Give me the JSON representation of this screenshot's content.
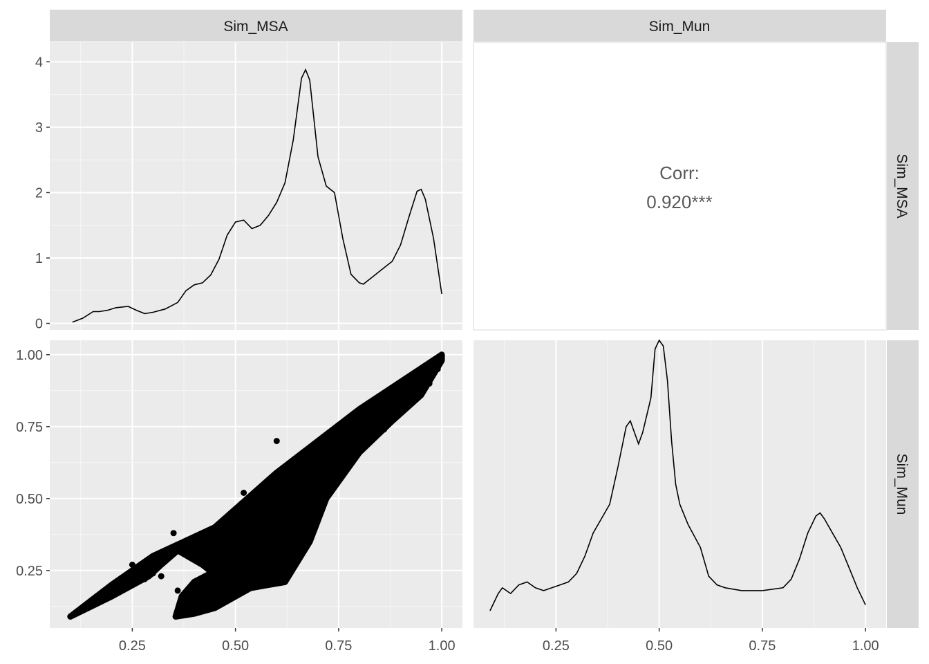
{
  "chart_data": {
    "type": "scatter-matrix",
    "variables": [
      "Sim_MSA",
      "Sim_Mun"
    ],
    "panels": [
      {
        "id": "density-sim-msa",
        "type": "line",
        "row": "Sim_MSA",
        "col": "Sim_MSA",
        "xlim": [
          0.05,
          1.05
        ],
        "ylim": [
          -0.1,
          4.3
        ],
        "x_ticks": [
          0.25,
          0.5,
          0.75,
          1.0
        ],
        "y_ticks": [
          0,
          1,
          2,
          3,
          4
        ],
        "y_tick_labels": [
          "0",
          "1",
          "2",
          "3",
          "4"
        ],
        "series": [
          {
            "x": [
              0.105,
              0.13,
              0.155,
              0.17,
              0.19,
              0.21,
              0.24,
              0.26,
              0.28,
              0.3,
              0.33,
              0.36,
              0.38,
              0.4,
              0.42,
              0.44,
              0.46,
              0.48,
              0.5,
              0.52,
              0.54,
              0.56,
              0.58,
              0.6,
              0.62,
              0.64,
              0.66,
              0.67,
              0.68,
              0.7,
              0.72,
              0.74,
              0.76,
              0.78,
              0.8,
              0.81,
              0.83,
              0.85,
              0.88,
              0.9,
              0.92,
              0.94,
              0.95,
              0.96,
              0.98,
              1.0
            ],
            "y": [
              0.02,
              0.08,
              0.18,
              0.18,
              0.2,
              0.24,
              0.26,
              0.2,
              0.15,
              0.17,
              0.22,
              0.32,
              0.5,
              0.59,
              0.62,
              0.74,
              0.98,
              1.35,
              1.55,
              1.58,
              1.45,
              1.5,
              1.65,
              1.85,
              2.15,
              2.8,
              3.75,
              3.88,
              3.72,
              2.55,
              2.1,
              2.0,
              1.3,
              0.75,
              0.62,
              0.6,
              0.7,
              0.8,
              0.95,
              1.2,
              1.62,
              2.02,
              2.05,
              1.9,
              1.3,
              0.45
            ]
          }
        ]
      },
      {
        "id": "corr-text",
        "type": "text",
        "row": "Sim_MSA",
        "col": "Sim_Mun",
        "corr_label": "Corr:",
        "corr_value": "0.920***"
      },
      {
        "id": "scatter-msa-mun",
        "type": "scatter",
        "row": "Sim_Mun",
        "col": "Sim_MSA",
        "xlim": [
          0.05,
          1.05
        ],
        "ylim": [
          0.05,
          1.05
        ],
        "x_ticks": [
          0.25,
          0.5,
          0.75,
          1.0
        ],
        "x_tick_labels": [
          "0.25",
          "0.50",
          "0.75",
          "1.00"
        ],
        "y_ticks": [
          0.25,
          0.5,
          0.75,
          1.0
        ],
        "y_tick_labels": [
          "0.25",
          "0.50",
          "0.75",
          "1.00"
        ],
        "regions": [
          [
            [
              0.1,
              0.09
            ],
            [
              0.2,
              0.2
            ],
            [
              0.3,
              0.3
            ],
            [
              0.45,
              0.4
            ],
            [
              0.6,
              0.59
            ],
            [
              0.8,
              0.81
            ],
            [
              1.0,
              1.0
            ],
            [
              1.0,
              0.98
            ],
            [
              0.95,
              0.86
            ],
            [
              0.88,
              0.77
            ],
            [
              0.8,
              0.66
            ],
            [
              0.72,
              0.5
            ],
            [
              0.68,
              0.35
            ],
            [
              0.62,
              0.21
            ],
            [
              0.5,
              0.18
            ],
            [
              0.42,
              0.27
            ],
            [
              0.36,
              0.32
            ],
            [
              0.32,
              0.27
            ],
            [
              0.29,
              0.23
            ],
            [
              0.2,
              0.16
            ],
            [
              0.1,
              0.09
            ]
          ],
          [
            [
              0.355,
              0.09
            ],
            [
              0.4,
              0.1
            ],
            [
              0.45,
              0.12
            ],
            [
              0.5,
              0.16
            ],
            [
              0.55,
              0.2
            ],
            [
              0.55,
              0.3
            ],
            [
              0.48,
              0.27
            ],
            [
              0.44,
              0.24
            ],
            [
              0.4,
              0.21
            ],
            [
              0.37,
              0.16
            ],
            [
              0.355,
              0.09
            ]
          ]
        ],
        "points": [
          [
            0.32,
            0.23
          ],
          [
            0.3,
            0.24
          ],
          [
            0.28,
            0.22
          ],
          [
            0.36,
            0.18
          ],
          [
            0.4,
            0.21
          ],
          [
            0.43,
            0.21
          ],
          [
            0.46,
            0.24
          ],
          [
            0.48,
            0.27
          ],
          [
            0.51,
            0.33
          ],
          [
            0.55,
            0.38
          ],
          [
            0.58,
            0.42
          ],
          [
            0.62,
            0.46
          ],
          [
            0.66,
            0.52
          ],
          [
            0.7,
            0.56
          ],
          [
            0.74,
            0.62
          ],
          [
            0.78,
            0.66
          ],
          [
            0.82,
            0.7
          ],
          [
            0.86,
            0.74
          ],
          [
            0.9,
            0.8
          ],
          [
            0.94,
            0.85
          ],
          [
            0.97,
            0.9
          ],
          [
            0.99,
            0.95
          ],
          [
            0.6,
            0.7
          ],
          [
            0.52,
            0.52
          ],
          [
            0.35,
            0.38
          ],
          [
            0.25,
            0.27
          ],
          [
            0.45,
            0.15
          ],
          [
            0.5,
            0.2
          ],
          [
            0.44,
            0.32
          ],
          [
            0.47,
            0.36
          ],
          [
            0.41,
            0.18
          ],
          [
            0.63,
            0.5
          ],
          [
            0.69,
            0.59
          ]
        ]
      },
      {
        "id": "density-sim-mun",
        "type": "line",
        "row": "Sim_Mun",
        "col": "Sim_Mun",
        "xlim": [
          0.05,
          1.05
        ],
        "ylim": [
          0,
          1
        ],
        "x_ticks": [
          0.25,
          0.5,
          0.75,
          1.0
        ],
        "x_tick_labels": [
          "0.25",
          "0.50",
          "0.75",
          "1.00"
        ],
        "series": [
          {
            "x": [
              0.09,
              0.11,
              0.12,
              0.14,
              0.16,
              0.18,
              0.2,
              0.22,
              0.24,
              0.26,
              0.28,
              0.3,
              0.32,
              0.34,
              0.36,
              0.38,
              0.4,
              0.42,
              0.43,
              0.44,
              0.45,
              0.46,
              0.48,
              0.49,
              0.5,
              0.51,
              0.52,
              0.53,
              0.54,
              0.55,
              0.57,
              0.6,
              0.62,
              0.64,
              0.66,
              0.7,
              0.75,
              0.8,
              0.82,
              0.84,
              0.86,
              0.88,
              0.89,
              0.9,
              0.92,
              0.94,
              0.96,
              0.98,
              1.0
            ],
            "y": [
              0.06,
              0.12,
              0.14,
              0.12,
              0.15,
              0.16,
              0.14,
              0.13,
              0.14,
              0.15,
              0.16,
              0.19,
              0.25,
              0.33,
              0.38,
              0.43,
              0.56,
              0.7,
              0.72,
              0.68,
              0.64,
              0.68,
              0.8,
              0.97,
              1.0,
              0.98,
              0.86,
              0.65,
              0.5,
              0.43,
              0.36,
              0.28,
              0.18,
              0.15,
              0.14,
              0.13,
              0.13,
              0.14,
              0.17,
              0.24,
              0.33,
              0.39,
              0.4,
              0.38,
              0.33,
              0.28,
              0.21,
              0.14,
              0.08
            ]
          }
        ]
      }
    ],
    "grid": true,
    "legend": "none"
  }
}
